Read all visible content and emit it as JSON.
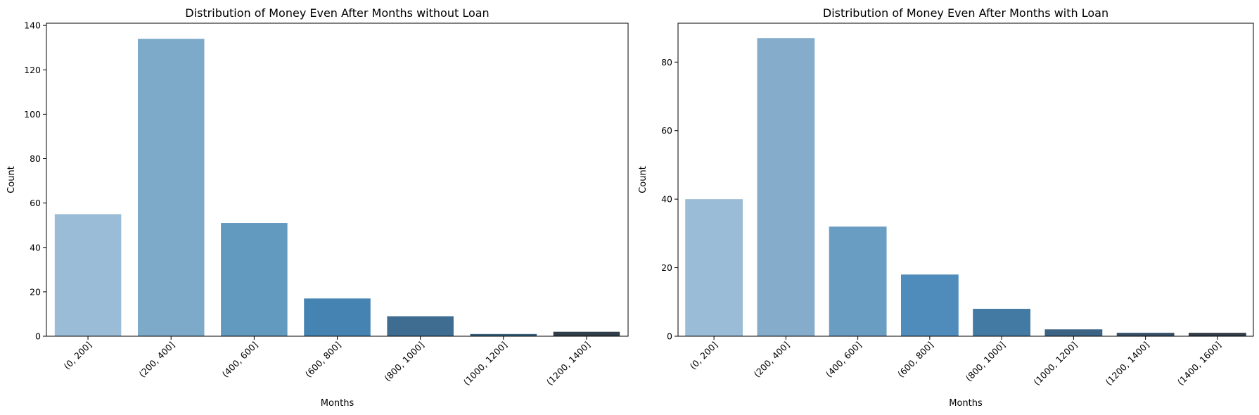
{
  "chart_data": [
    {
      "type": "bar",
      "title": "Distribution of Money Even After Months without Loan",
      "xlabel": "Months",
      "ylabel": "Count",
      "categories": [
        "(0, 200]",
        "(200, 400]",
        "(400, 600]",
        "(600, 800]",
        "(800, 1000]",
        "(1000, 1200]",
        "(1200, 1400]"
      ],
      "values": [
        55,
        134,
        51,
        17,
        9,
        1,
        2
      ],
      "colors": [
        "#9bbcd6",
        "#7eaac9",
        "#6299be",
        "#4483b2",
        "#3e6d91",
        "#345b77",
        "#313d49"
      ],
      "ylim": [
        0,
        141
      ],
      "yticks": [
        0,
        20,
        40,
        60,
        80,
        100,
        120,
        140
      ],
      "grid": false
    },
    {
      "type": "bar",
      "title": "Distribution of Money Even After Months with Loan",
      "xlabel": "Months",
      "ylabel": "Count",
      "categories": [
        "(0, 200]",
        "(200, 400]",
        "(400, 600]",
        "(600, 800]",
        "(800, 1000]",
        "(1000, 1200]",
        "(1200, 1400]",
        "(1400, 1600]"
      ],
      "values": [
        40,
        87,
        32,
        18,
        8,
        2,
        1,
        1
      ],
      "colors": [
        "#9bbcd6",
        "#85acca",
        "#6a9dc2",
        "#508cbb",
        "#437aa3",
        "#3c6384",
        "#354f66",
        "#313d49"
      ],
      "ylim": [
        0,
        91.35
      ],
      "yticks": [
        0,
        20,
        40,
        60,
        80
      ],
      "grid": false
    }
  ]
}
